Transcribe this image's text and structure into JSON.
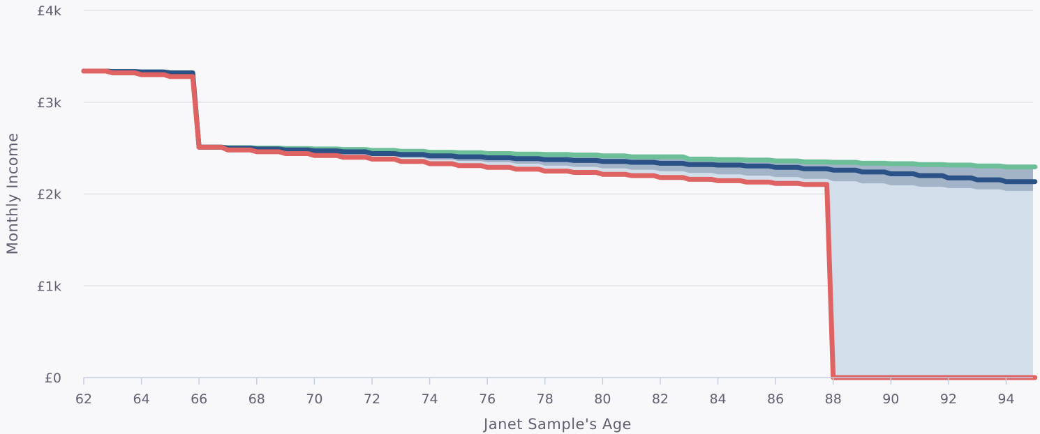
{
  "chart_data": {
    "type": "line",
    "title": "",
    "xlabel": "Janet Sample's Age",
    "ylabel": "Monthly Income",
    "xlim": [
      62,
      95
    ],
    "ylim": [
      0,
      4000
    ],
    "x_ticks": [
      62,
      64,
      66,
      68,
      70,
      72,
      74,
      76,
      78,
      80,
      82,
      84,
      86,
      88,
      90,
      92,
      94
    ],
    "x_tick_labels": [
      "62",
      "64",
      "66",
      "68",
      "70",
      "72",
      "74",
      "76",
      "78",
      "80",
      "82",
      "84",
      "86",
      "88",
      "90",
      "92",
      "94"
    ],
    "y_ticks": [
      0,
      1000,
      2000,
      3000,
      4000
    ],
    "y_tick_labels": [
      "£0",
      "£1k",
      "£2k",
      "£3k",
      "£4k"
    ],
    "grid": true,
    "legend": "none",
    "step": true,
    "x": [
      62,
      63,
      64,
      65,
      66,
      67,
      68,
      69,
      70,
      71,
      72,
      73,
      74,
      75,
      76,
      77,
      78,
      79,
      80,
      81,
      82,
      83,
      84,
      85,
      86,
      87,
      88,
      89,
      90,
      91,
      92,
      93,
      94,
      95
    ],
    "series": [
      {
        "color": "#6cbf98",
        "values": [
          3340,
          3335,
          3330,
          3320,
          2510,
          2505,
          2500,
          2495,
          2490,
          2485,
          2475,
          2465,
          2455,
          2450,
          2440,
          2435,
          2430,
          2425,
          2415,
          2405,
          2405,
          2380,
          2375,
          2370,
          2360,
          2350,
          2345,
          2335,
          2330,
          2320,
          2315,
          2305,
          2295,
          2295
        ]
      },
      {
        "color": "#2b5286",
        "values": [
          3340,
          3335,
          3330,
          3320,
          2510,
          2500,
          2490,
          2480,
          2470,
          2460,
          2440,
          2430,
          2415,
          2405,
          2395,
          2385,
          2375,
          2365,
          2355,
          2345,
          2335,
          2320,
          2315,
          2305,
          2290,
          2275,
          2260,
          2240,
          2220,
          2200,
          2175,
          2155,
          2135,
          2135
        ]
      },
      {
        "color": "#df6362",
        "values": [
          3340,
          3320,
          3300,
          3280,
          2510,
          2480,
          2460,
          2440,
          2420,
          2400,
          2380,
          2355,
          2330,
          2310,
          2290,
          2270,
          2250,
          2235,
          2215,
          2200,
          2180,
          2160,
          2145,
          2130,
          2115,
          2105,
          0,
          0,
          0,
          0,
          0,
          0,
          0,
          0
        ]
      }
    ],
    "band_outer": {
      "color": "#d3deeb",
      "upper": [
        3340,
        3335,
        3330,
        3320,
        2510,
        2500,
        2490,
        2480,
        2470,
        2460,
        2440,
        2430,
        2415,
        2405,
        2395,
        2385,
        2375,
        2365,
        2355,
        2345,
        2335,
        2320,
        2315,
        2305,
        2290,
        2275,
        2260,
        2240,
        2220,
        2200,
        2175,
        2155,
        2135,
        2135
      ],
      "lower": [
        3340,
        3320,
        3300,
        3280,
        2510,
        2480,
        2460,
        2440,
        2420,
        2400,
        2380,
        2355,
        2330,
        2310,
        2290,
        2270,
        2250,
        2235,
        2215,
        2200,
        2180,
        2160,
        2145,
        2130,
        2115,
        2105,
        0,
        0,
        0,
        0,
        0,
        0,
        0,
        0
      ]
    },
    "band_inner": {
      "color": "#a3b3c8",
      "upper": [
        3340,
        3335,
        3330,
        3320,
        2510,
        2505,
        2500,
        2495,
        2490,
        2485,
        2475,
        2465,
        2455,
        2450,
        2440,
        2435,
        2430,
        2425,
        2415,
        2405,
        2405,
        2380,
        2375,
        2370,
        2360,
        2350,
        2345,
        2335,
        2330,
        2320,
        2315,
        2305,
        2295,
        2295
      ],
      "lower": [
        3340,
        3330,
        3315,
        3300,
        2510,
        2490,
        2475,
        2460,
        2445,
        2430,
        2415,
        2395,
        2375,
        2360,
        2345,
        2330,
        2310,
        2295,
        2280,
        2265,
        2250,
        2230,
        2215,
        2200,
        2185,
        2165,
        2140,
        2115,
        2095,
        2080,
        2065,
        2050,
        2035,
        2035
      ]
    }
  }
}
